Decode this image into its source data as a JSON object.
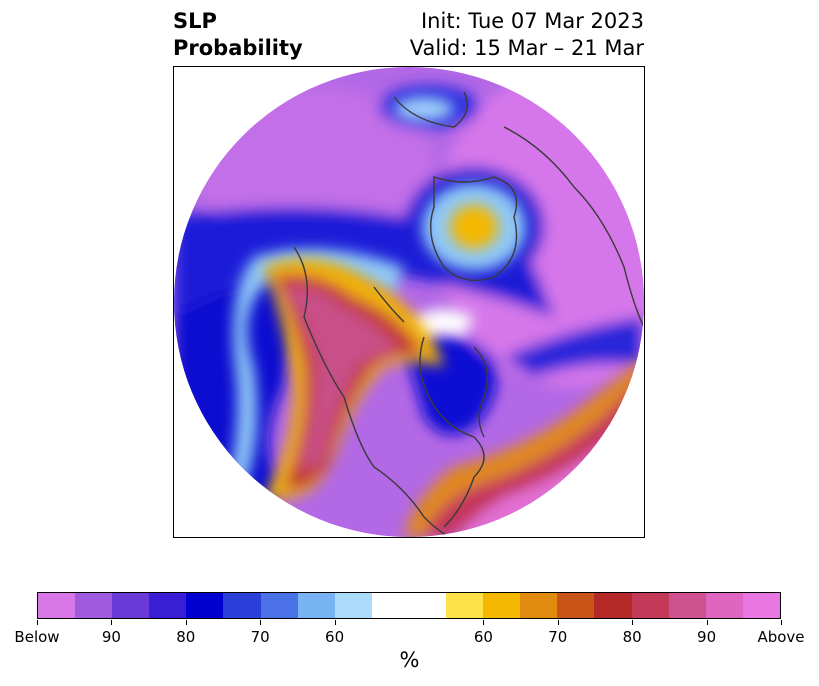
{
  "title": {
    "left_line1": "SLP",
    "left_line2": "Probability",
    "right_line1": "Init: Tue 07 Mar 2023",
    "right_line2": "Valid: 15 Mar – 21 Mar"
  },
  "colorbar": {
    "colors": [
      "#d977e8",
      "#a05ae0",
      "#6a3ad8",
      "#3a1ed6",
      "#0000d0",
      "#2a3ed8",
      "#4a72e6",
      "#78b4f4",
      "#acdcfc",
      "#ffffff",
      "#ffe14a",
      "#f4b800",
      "#e08a10",
      "#c85418",
      "#b42828",
      "#c23a58",
      "#cf5290",
      "#de66c0",
      "#e877e2"
    ],
    "neutral_index": 9,
    "tick_labels": [
      "Below",
      "90",
      "80",
      "70",
      "60",
      "60",
      "70",
      "80",
      "90",
      "Above"
    ],
    "unit": "%"
  }
}
